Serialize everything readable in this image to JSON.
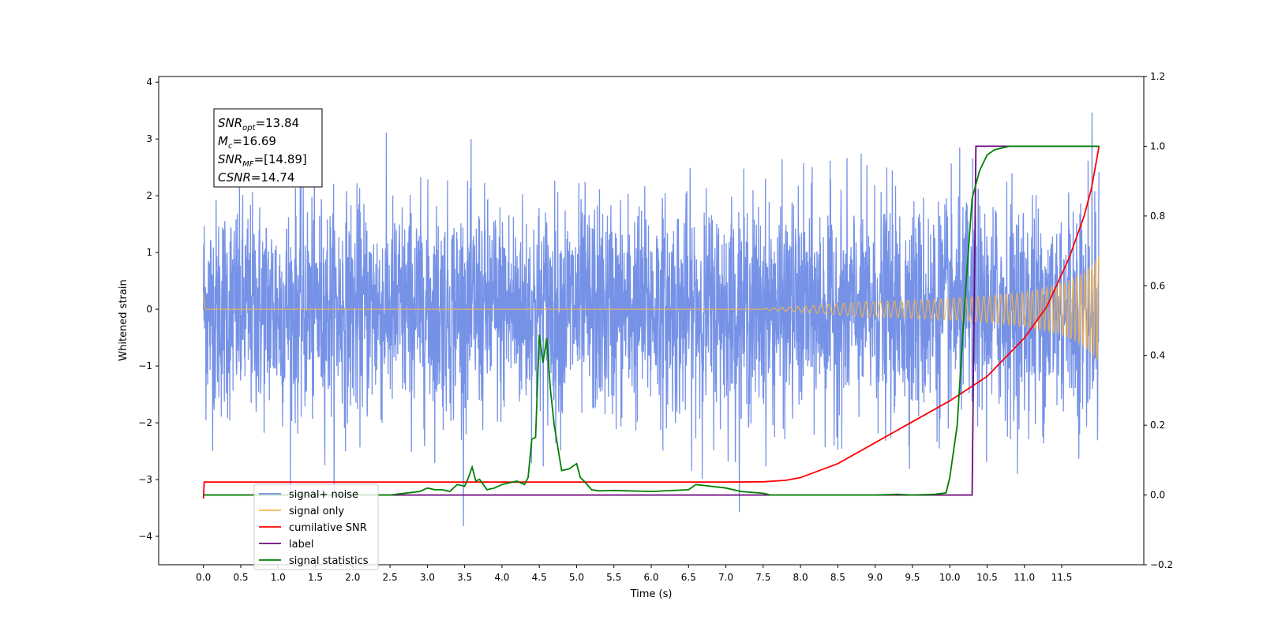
{
  "chart_data": {
    "type": "line",
    "xlabel": "Time (s)",
    "ylabel": "Whitened strain",
    "xlim": [
      -0.6,
      12.6
    ],
    "ylim": [
      -4.5,
      4.1
    ],
    "ylim_right": [
      -0.2,
      1.2
    ],
    "x_ticks": [
      0.0,
      0.5,
      1.0,
      1.5,
      2.0,
      2.5,
      3.0,
      3.5,
      4.0,
      4.5,
      5.0,
      5.5,
      6.0,
      6.5,
      7.0,
      7.5,
      8.0,
      8.5,
      9.0,
      9.5,
      10.0,
      10.5,
      11.0,
      11.5
    ],
    "x_tick_labels": [
      "0.0",
      "0.5",
      "1.0",
      "1.5",
      "2.0",
      "2.5",
      "3.0",
      "3.5",
      "4.0",
      "4.5",
      "5.0",
      "5.5",
      "6.0",
      "6.5",
      "7.0",
      "7.5",
      "8.0",
      "8.5",
      "9.0",
      "9.5",
      "10.0",
      "10.5",
      "11.0",
      "11.5"
    ],
    "y_ticks": [
      -4,
      -3,
      -2,
      -1,
      0,
      1,
      2,
      3,
      4
    ],
    "y_tick_labels": [
      "−4",
      "−3",
      "−2",
      "−1",
      "0",
      "1",
      "2",
      "3",
      "4"
    ],
    "y2_ticks": [
      -0.2,
      0.0,
      0.2,
      0.4,
      0.6,
      0.8,
      1.0,
      1.2
    ],
    "y2_tick_labels": [
      "−0.2",
      "0.0",
      "0.2",
      "0.4",
      "0.6",
      "0.8",
      "1.0",
      "1.2"
    ],
    "grid": false,
    "legend_position": "lower-left",
    "annotation_box": {
      "position": "top-left",
      "lines": [
        {
          "base": "SNR",
          "sub": "opt",
          "rest": "=13.84"
        },
        {
          "base": "M",
          "sub": "c",
          "rest": "=16.69"
        },
        {
          "base": "SNR",
          "sub": "MF",
          "rest": "=[14.89]"
        },
        {
          "base": "CSNR",
          "sub": "",
          "rest": "=14.74"
        }
      ]
    },
    "series": [
      {
        "name": "signal+ noise",
        "axis": "left",
        "color": "#6f8ce6",
        "description_values": {
          "x_range": [
            0.0,
            12.0
          ],
          "noise_std": 0.95,
          "min": -4.1,
          "max": 3.7
        }
      },
      {
        "name": "signal only",
        "axis": "left",
        "color": "#f5b44a",
        "description_values": {
          "x_range": [
            0.0,
            12.0
          ],
          "envelope_at_12s": 0.95,
          "chirp_onset": 7.5
        }
      },
      {
        "name": "cumilative SNR",
        "axis": "right",
        "color": "#ff0000",
        "x": [
          0.0,
          0.01,
          1.0,
          2.0,
          3.0,
          4.0,
          5.0,
          6.0,
          7.0,
          7.5,
          7.8,
          8.0,
          8.5,
          9.0,
          9.5,
          10.0,
          10.5,
          11.0,
          11.3,
          11.6,
          11.8,
          11.9,
          12.0
        ],
        "values": [
          -0.01,
          0.037,
          0.037,
          0.037,
          0.037,
          0.037,
          0.037,
          0.037,
          0.037,
          0.038,
          0.042,
          0.05,
          0.09,
          0.15,
          0.21,
          0.27,
          0.34,
          0.45,
          0.54,
          0.68,
          0.8,
          0.88,
          1.0
        ]
      },
      {
        "name": "label",
        "axis": "right",
        "color": "#6a0a7a",
        "x": [
          0.0,
          10.3,
          10.35,
          12.0
        ],
        "values": [
          0.0,
          0.0,
          1.0,
          1.0
        ]
      },
      {
        "name": "signal statistics",
        "axis": "right",
        "color": "#008000",
        "x": [
          0.0,
          2.5,
          2.9,
          3.0,
          3.1,
          3.2,
          3.3,
          3.4,
          3.5,
          3.55,
          3.6,
          3.65,
          3.7,
          3.8,
          3.9,
          4.0,
          4.1,
          4.2,
          4.3,
          4.35,
          4.4,
          4.45,
          4.5,
          4.55,
          4.6,
          4.65,
          4.7,
          4.8,
          4.9,
          5.0,
          5.05,
          5.1,
          5.2,
          5.3,
          5.5,
          6.0,
          6.5,
          6.6,
          6.8,
          7.0,
          7.2,
          7.5,
          7.6,
          8.0,
          9.0,
          9.3,
          9.5,
          9.8,
          9.95,
          10.0,
          10.1,
          10.2,
          10.3,
          10.4,
          10.5,
          10.6,
          10.7,
          10.8,
          11.0,
          11.5,
          12.0
        ],
        "values": [
          0.0,
          0.0,
          0.01,
          0.02,
          0.015,
          0.015,
          0.01,
          0.03,
          0.025,
          0.05,
          0.08,
          0.04,
          0.045,
          0.015,
          0.02,
          0.03,
          0.035,
          0.04,
          0.03,
          0.05,
          0.16,
          0.165,
          0.46,
          0.38,
          0.45,
          0.3,
          0.2,
          0.07,
          0.075,
          0.09,
          0.05,
          0.04,
          0.015,
          0.012,
          0.013,
          0.01,
          0.015,
          0.03,
          0.025,
          0.02,
          0.01,
          0.005,
          0.0,
          0.0,
          0.0,
          0.002,
          0.0,
          0.002,
          0.006,
          0.05,
          0.2,
          0.55,
          0.85,
          0.93,
          0.975,
          0.99,
          0.995,
          1.0,
          1.0,
          1.0,
          1.0
        ]
      }
    ]
  },
  "legend": {
    "items": [
      {
        "label": "signal+ noise",
        "color": "#6f8ce6"
      },
      {
        "label": "signal only",
        "color": "#f5b44a"
      },
      {
        "label": "cumilative SNR",
        "color": "#ff0000"
      },
      {
        "label": "label",
        "color": "#6a0a7a"
      },
      {
        "label": "signal statistics",
        "color": "#008000"
      }
    ]
  }
}
